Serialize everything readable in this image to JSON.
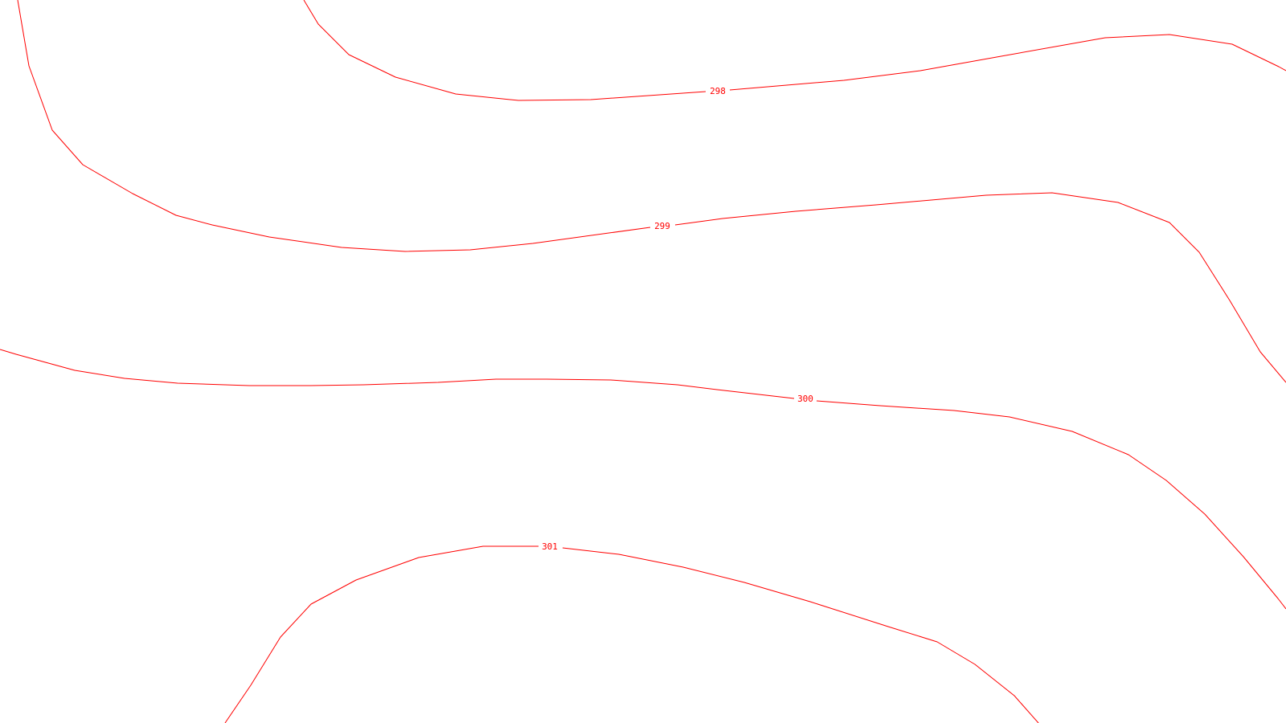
{
  "map": {
    "line_color": "#ff0000",
    "background": "#ffffff",
    "contours": [
      {
        "level": "298"
      },
      {
        "level": "299"
      },
      {
        "level": "300"
      },
      {
        "level": "301"
      }
    ]
  }
}
